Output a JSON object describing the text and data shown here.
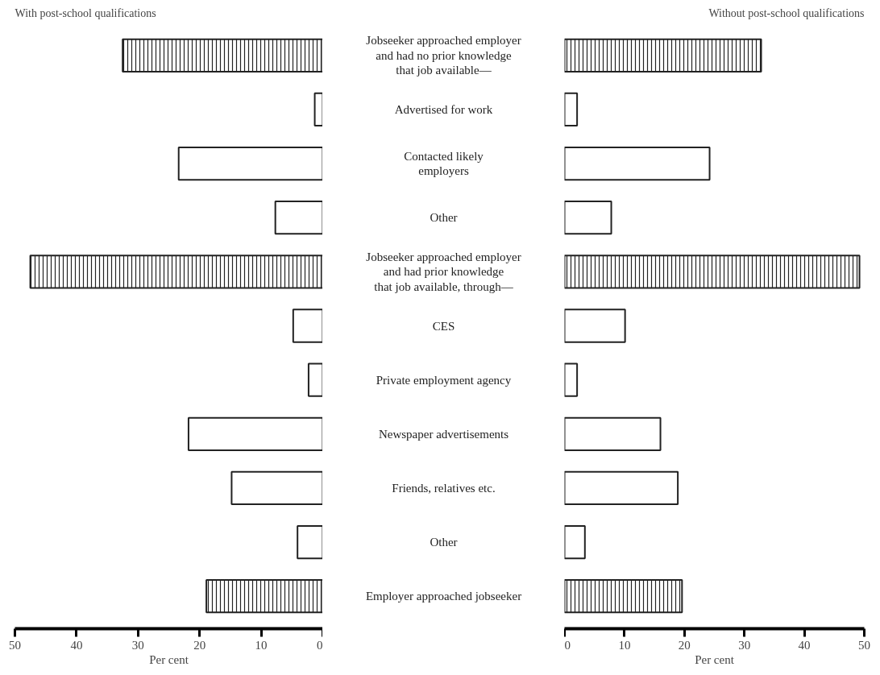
{
  "chart_data": [
    {
      "type": "bar",
      "orientation": "horizontal",
      "title": "With post-school qualifications",
      "xlabel": "Per cent",
      "tick_labels": "x",
      "categories": [
        "Jobseeker approached employer\nand had no prior knowledge\nthat job available—",
        "Advertised for work",
        "Contacted likely\nemployers",
        "Other",
        "Jobseeker approached employer\nand had prior knowledge\nthat job available, through—",
        "CES",
        "Private employment agency",
        "Newspaper advertisements",
        "Friends, relatives etc.",
        "Other",
        "Employer approached jobseeker"
      ],
      "values": [
        32.5,
        1.3,
        23.4,
        7.7,
        47.5,
        4.8,
        2.3,
        21.8,
        14.8,
        4.1,
        18.9
      ],
      "colors": [
        "#222222",
        "#ffffff",
        "#ffffff",
        "#ffffff",
        "#222222",
        "#ffffff",
        "#ffffff",
        "#ffffff",
        "#ffffff",
        "#ffffff",
        "#222222"
      ],
      "xlim": [
        50,
        0
      ],
      "xticks": [
        50,
        40,
        30,
        20,
        10,
        0
      ],
      "grid": false
    },
    {
      "type": "bar",
      "orientation": "horizontal",
      "title": "Without post-school qualifications",
      "xlabel": "Per cent",
      "tick_labels": "x",
      "categories": [
        null,
        null,
        null,
        null,
        null,
        null,
        null,
        null,
        null,
        null,
        null
      ],
      "values": [
        32.8,
        2.1,
        24.2,
        7.8,
        49.2,
        10.1,
        2.1,
        16.0,
        18.9,
        3.4,
        19.6
      ],
      "colors": [
        "#222222",
        "#ffffff",
        "#ffffff",
        "#ffffff",
        "#222222",
        "#ffffff",
        "#ffffff",
        "#ffffff",
        "#ffffff",
        "#ffffff",
        "#222222"
      ],
      "xlim": [
        0,
        50
      ],
      "xticks": [
        0,
        10,
        20,
        30,
        40,
        50
      ],
      "grid": false
    }
  ]
}
